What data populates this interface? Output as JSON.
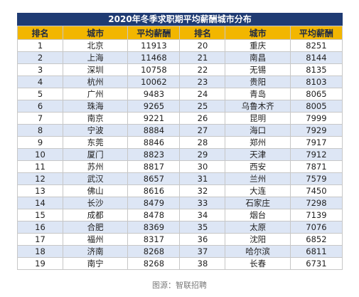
{
  "title": "2020年冬季求职期平均薪酬城市分布",
  "headers": [
    "排名",
    "城市",
    "平均薪酬",
    "排名",
    "城市",
    "平均薪酬"
  ],
  "rows": [
    [
      "1",
      "北京",
      "11913",
      "20",
      "重庆",
      "8251"
    ],
    [
      "2",
      "上海",
      "11468",
      "21",
      "南昌",
      "8144"
    ],
    [
      "3",
      "深圳",
      "10758",
      "22",
      "无锡",
      "8135"
    ],
    [
      "4",
      "杭州",
      "10062",
      "23",
      "贵阳",
      "8103"
    ],
    [
      "5",
      "广州",
      "9483",
      "24",
      "青岛",
      "8065"
    ],
    [
      "6",
      "珠海",
      "9265",
      "25",
      "乌鲁木齐",
      "8005"
    ],
    [
      "7",
      "南京",
      "9221",
      "26",
      "昆明",
      "7999"
    ],
    [
      "8",
      "宁波",
      "8884",
      "27",
      "海口",
      "7929"
    ],
    [
      "9",
      "东莞",
      "8846",
      "28",
      "郑州",
      "7917"
    ],
    [
      "10",
      "厦门",
      "8823",
      "29",
      "天津",
      "7912"
    ],
    [
      "11",
      "苏州",
      "8817",
      "30",
      "西安",
      "7871"
    ],
    [
      "12",
      "武汉",
      "8657",
      "31",
      "兰州",
      "7579"
    ],
    [
      "13",
      "佛山",
      "8616",
      "32",
      "大连",
      "7450"
    ],
    [
      "14",
      "长沙",
      "8479",
      "33",
      "石家庄",
      "7298"
    ],
    [
      "15",
      "成都",
      "8478",
      "34",
      "烟台",
      "7139"
    ],
    [
      "16",
      "合肥",
      "8369",
      "35",
      "太原",
      "7076"
    ],
    [
      "17",
      "福州",
      "8317",
      "36",
      "沈阳",
      "6852"
    ],
    [
      "18",
      "济南",
      "8268",
      "37",
      "哈尔滨",
      "6811"
    ],
    [
      "19",
      "南宁",
      "8268",
      "38",
      "长春",
      "6731"
    ]
  ],
  "caption": "图源：智联招聘",
  "colors": {
    "title_bg": "#1f3b73",
    "header_bg": "#f2b600",
    "row_alt": "#dde6f5"
  }
}
